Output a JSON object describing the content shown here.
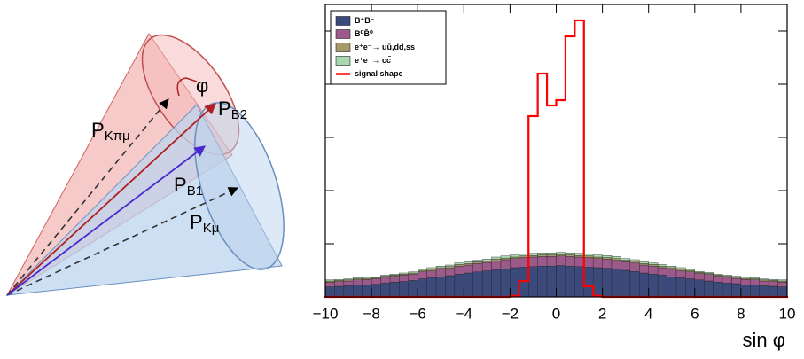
{
  "diagram": {
    "phi": "φ",
    "p_kpimu": {
      "symbol": "P",
      "subscript": "Kπμ"
    },
    "p_b2": {
      "symbol": "P",
      "subscript": "B2"
    },
    "p_b1": {
      "symbol": "P",
      "subscript": "B1"
    },
    "p_kmu": {
      "symbol": "P",
      "subscript": "Kμ"
    }
  },
  "chart_data": {
    "type": "histogram",
    "x_label": "sin φ",
    "bins": [
      -10,
      -9.6,
      -9.2,
      -8.8,
      -8.4,
      -8,
      -7.6,
      -7.2,
      -6.8,
      -6.4,
      -6,
      -5.6,
      -5.2,
      -4.8,
      -4.4,
      -4,
      -3.6,
      -3.2,
      -2.8,
      -2.4,
      -2,
      -1.6,
      -1.2,
      -0.8,
      -0.4,
      0,
      0.4,
      0.8,
      1.2,
      1.6,
      2,
      2.4,
      2.8,
      3.2,
      3.6,
      4,
      4.4,
      4.8,
      5.2,
      5.6,
      6,
      6.4,
      6.8,
      7.2,
      7.6,
      8,
      8.4,
      8.8,
      9.2,
      9.6,
      10
    ],
    "series": [
      {
        "name": "B⁺B⁻",
        "color": "#3b4a7a",
        "stacked": true,
        "values": [
          0.19,
          0.2,
          0.21,
          0.22,
          0.23,
          0.24,
          0.26,
          0.28,
          0.29,
          0.31,
          0.34,
          0.36,
          0.38,
          0.4,
          0.43,
          0.45,
          0.47,
          0.49,
          0.51,
          0.53,
          0.55,
          0.56,
          0.57,
          0.58,
          0.58,
          0.59,
          0.58,
          0.57,
          0.56,
          0.55,
          0.54,
          0.52,
          0.5,
          0.48,
          0.45,
          0.43,
          0.41,
          0.38,
          0.36,
          0.34,
          0.32,
          0.3,
          0.28,
          0.26,
          0.25,
          0.23,
          0.22,
          0.21,
          0.2,
          0.19
        ]
      },
      {
        "name": "B⁰B̄⁰",
        "color": "#9b5a8a",
        "stacked": true,
        "values": [
          0.09,
          0.09,
          0.09,
          0.1,
          0.1,
          0.1,
          0.11,
          0.11,
          0.12,
          0.12,
          0.13,
          0.13,
          0.14,
          0.14,
          0.15,
          0.15,
          0.16,
          0.16,
          0.17,
          0.17,
          0.17,
          0.18,
          0.18,
          0.18,
          0.18,
          0.18,
          0.18,
          0.18,
          0.18,
          0.17,
          0.17,
          0.17,
          0.16,
          0.16,
          0.15,
          0.15,
          0.14,
          0.14,
          0.13,
          0.13,
          0.12,
          0.12,
          0.11,
          0.11,
          0.1,
          0.1,
          0.1,
          0.09,
          0.09,
          0.09
        ]
      },
      {
        "name": "e⁺e⁻→ uū,dd̄,ss̄",
        "color": "#a59a6a",
        "stacked": true,
        "values": [
          0.02,
          0.02,
          0.02,
          0.02,
          0.02,
          0.02,
          0.02,
          0.02,
          0.02,
          0.02,
          0.03,
          0.03,
          0.03,
          0.03,
          0.03,
          0.03,
          0.03,
          0.03,
          0.03,
          0.03,
          0.03,
          0.03,
          0.03,
          0.03,
          0.03,
          0.03,
          0.03,
          0.03,
          0.03,
          0.03,
          0.03,
          0.03,
          0.03,
          0.03,
          0.03,
          0.03,
          0.03,
          0.03,
          0.03,
          0.03,
          0.02,
          0.02,
          0.02,
          0.02,
          0.02,
          0.02,
          0.02,
          0.02,
          0.02,
          0.02
        ]
      },
      {
        "name": "e⁺e⁻→ cc̄",
        "color": "#a8d8b0",
        "stacked": true,
        "values": [
          0.02,
          0.02,
          0.02,
          0.02,
          0.02,
          0.02,
          0.02,
          0.02,
          0.02,
          0.02,
          0.03,
          0.03,
          0.03,
          0.03,
          0.03,
          0.03,
          0.03,
          0.03,
          0.04,
          0.04,
          0.04,
          0.04,
          0.04,
          0.04,
          0.04,
          0.04,
          0.04,
          0.04,
          0.04,
          0.04,
          0.04,
          0.04,
          0.03,
          0.03,
          0.03,
          0.03,
          0.03,
          0.03,
          0.03,
          0.03,
          0.02,
          0.02,
          0.02,
          0.02,
          0.02,
          0.02,
          0.02,
          0.02,
          0.02,
          0.02
        ]
      },
      {
        "name": "signal shape",
        "color": "#ff0000",
        "stacked": false,
        "values": [
          0,
          0,
          0,
          0,
          0,
          0,
          0,
          0,
          0,
          0,
          0,
          0,
          0,
          0,
          0,
          0,
          0,
          0,
          0,
          0,
          0.02,
          0.3,
          3.4,
          4.2,
          3.6,
          3.7,
          4.9,
          5.2,
          0.2,
          0.02,
          0,
          0,
          0,
          0,
          0,
          0,
          0,
          0,
          0,
          0,
          0,
          0,
          0,
          0,
          0,
          0,
          0,
          0,
          0,
          0
        ]
      }
    ],
    "xlim": [
      -10,
      10
    ],
    "xticks": [
      {
        "value": -10,
        "label": "−10"
      },
      {
        "value": -8,
        "label": "−8"
      },
      {
        "value": -6,
        "label": "−6"
      },
      {
        "value": -4,
        "label": "−4"
      },
      {
        "value": -2,
        "label": "−2"
      },
      0,
      2,
      4,
      6,
      8,
      10
    ],
    "ylim": [
      0,
      5.5
    ],
    "yticks": [
      1,
      2,
      3,
      4,
      5
    ],
    "legend": "top-left"
  }
}
